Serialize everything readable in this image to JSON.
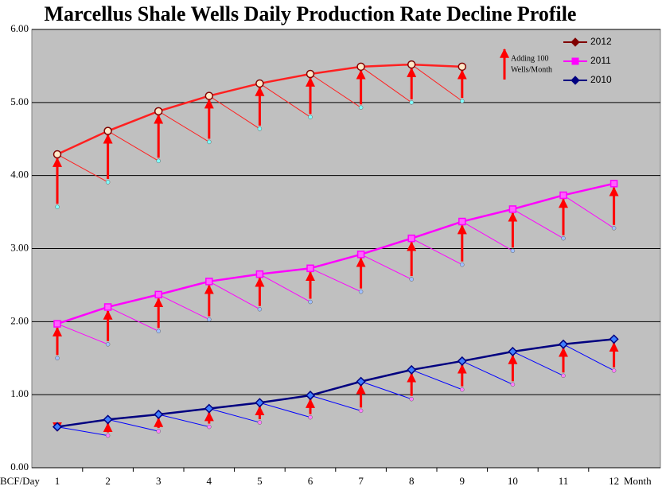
{
  "chart_data": {
    "type": "line",
    "title": "Marcellus Shale Wells Daily Production Rate Decline Profile",
    "ylabel": "BCF/Day",
    "xlabel": "Month",
    "annotation": [
      "Adding 100",
      "Wells/Month"
    ],
    "categories": [
      "1",
      "2",
      "3",
      "4",
      "5",
      "6",
      "7",
      "8",
      "9",
      "10",
      "11",
      "12"
    ],
    "ylim": [
      0,
      6
    ],
    "yticks": [
      {
        "value": 0,
        "label": "0.00"
      },
      {
        "value": 1,
        "label": "1.00"
      },
      {
        "value": 2,
        "label": "2.00"
      },
      {
        "value": 3,
        "label": "3.00"
      },
      {
        "value": 4,
        "label": "4.00"
      },
      {
        "value": 5,
        "label": "5.00"
      },
      {
        "value": 6,
        "label": "6.00"
      }
    ],
    "grid": true,
    "legend": "top-right",
    "arrow_color": "#ff0000",
    "background": "#c0c0c0",
    "series": [
      {
        "name": "2012",
        "color": "#ff2020",
        "legend_color": "#800000",
        "marker": "circle",
        "marker_fill": "#ffe8c8",
        "decline_color": "#80ffff",
        "values": [
          4.29,
          4.61,
          4.88,
          5.09,
          5.26,
          5.39,
          5.49,
          5.52,
          5.49,
          null,
          null,
          null
        ],
        "decline": [
          3.57,
          3.91,
          4.2,
          4.46,
          4.64,
          4.8,
          4.93,
          5.0,
          5.02,
          null,
          null,
          null
        ]
      },
      {
        "name": "2011",
        "color": "#ff00ff",
        "legend_color": "#ff00ff",
        "marker": "square",
        "marker_fill": "#ff60ff",
        "decline_color": "#a0c0ff",
        "values": [
          1.97,
          2.2,
          2.37,
          2.55,
          2.65,
          2.73,
          2.92,
          3.14,
          3.37,
          3.54,
          3.73,
          3.89
        ],
        "decline": [
          1.5,
          1.69,
          1.87,
          2.03,
          2.17,
          2.27,
          2.41,
          2.58,
          2.78,
          2.97,
          3.14,
          3.28
        ]
      },
      {
        "name": "2010",
        "color": "#000080",
        "legend_color": "#000080",
        "marker": "diamond",
        "marker_fill": "#4080ff",
        "decline_color": "#ff80ff",
        "decline_line": "#0000ff",
        "values": [
          0.56,
          0.66,
          0.73,
          0.81,
          0.89,
          0.99,
          1.18,
          1.34,
          1.46,
          1.59,
          1.69,
          1.76
        ],
        "decline": [
          0.54,
          0.44,
          0.5,
          0.56,
          0.62,
          0.69,
          0.78,
          0.94,
          1.07,
          1.14,
          1.26,
          1.33
        ]
      }
    ]
  }
}
